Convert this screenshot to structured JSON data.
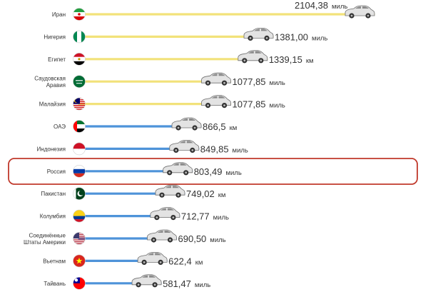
{
  "chart_data": {
    "type": "bar",
    "title": "",
    "xlabel": "",
    "ylabel": "",
    "highlight": "Россия",
    "colors": {
      "mile_bar": "#f2e27a",
      "km_bar": "#4e93d9",
      "highlight_border": "#c0392b"
    },
    "rows": [
      {
        "country": "Иран",
        "lines": [
          "Иран"
        ],
        "value": 2104.38,
        "value_label": "2104,38",
        "unit": "миль",
        "bar": "mile",
        "flag": "flag-iran-icon"
      },
      {
        "country": "Нигерия",
        "lines": [
          "Нигерия"
        ],
        "value": 1381.0,
        "value_label": "1381,00",
        "unit": "миль",
        "bar": "mile",
        "flag": "flag-nigeria-icon"
      },
      {
        "country": "Египет",
        "lines": [
          "Египет"
        ],
        "value": 1339.15,
        "value_label": "1339,15",
        "unit": "км",
        "bar": "mile",
        "flag": "flag-egypt-icon"
      },
      {
        "country": "Саудовская Аравия",
        "lines": [
          "Саудовская",
          "Аравия"
        ],
        "value": 1077.85,
        "value_label": "1077,85",
        "unit": "миль",
        "bar": "mile",
        "flag": "flag-saudi-arabia-icon"
      },
      {
        "country": "Малайзия",
        "lines": [
          "Малайзия"
        ],
        "value": 1077.85,
        "value_label": "1077,85",
        "unit": "миль",
        "bar": "mile",
        "flag": "flag-malaysia-icon"
      },
      {
        "country": "ОАЭ",
        "lines": [
          "ОАЭ"
        ],
        "value": 866.5,
        "value_label": "866,5",
        "unit": "км",
        "bar": "km",
        "flag": "flag-uae-icon"
      },
      {
        "country": "Индонезия",
        "lines": [
          "Индонезия"
        ],
        "value": 849.85,
        "value_label": "849,85",
        "unit": "миль",
        "bar": "km",
        "flag": "flag-indonesia-icon"
      },
      {
        "country": "Россия",
        "lines": [
          "Россия"
        ],
        "value": 803.49,
        "value_label": "803,49",
        "unit": "миль",
        "bar": "km",
        "flag": "flag-russia-icon"
      },
      {
        "country": "Пакистан",
        "lines": [
          "Пакистан"
        ],
        "value": 749.02,
        "value_label": "749,02",
        "unit": "км",
        "bar": "km",
        "flag": "flag-pakistan-icon"
      },
      {
        "country": "Колумбия",
        "lines": [
          "Колумбия"
        ],
        "value": 712.77,
        "value_label": "712,77",
        "unit": "миль",
        "bar": "km",
        "flag": "flag-colombia-icon"
      },
      {
        "country": "Соединённые Штаты Америки",
        "lines": [
          "Соединённые",
          "Штаты Америки"
        ],
        "value": 690.5,
        "value_label": "690,50",
        "unit": "миль",
        "bar": "km",
        "flag": "flag-usa-icon"
      },
      {
        "country": "Вьетнам",
        "lines": [
          "Вьетнам"
        ],
        "value": 622.4,
        "value_label": "622,4",
        "unit": "км",
        "bar": "km",
        "flag": "flag-vietnam-icon"
      },
      {
        "country": "Тайвань",
        "lines": [
          "Тайвань"
        ],
        "value": 581.47,
        "value_label": "581,47",
        "unit": "миль",
        "bar": "km",
        "flag": "flag-taiwan-icon"
      }
    ]
  }
}
